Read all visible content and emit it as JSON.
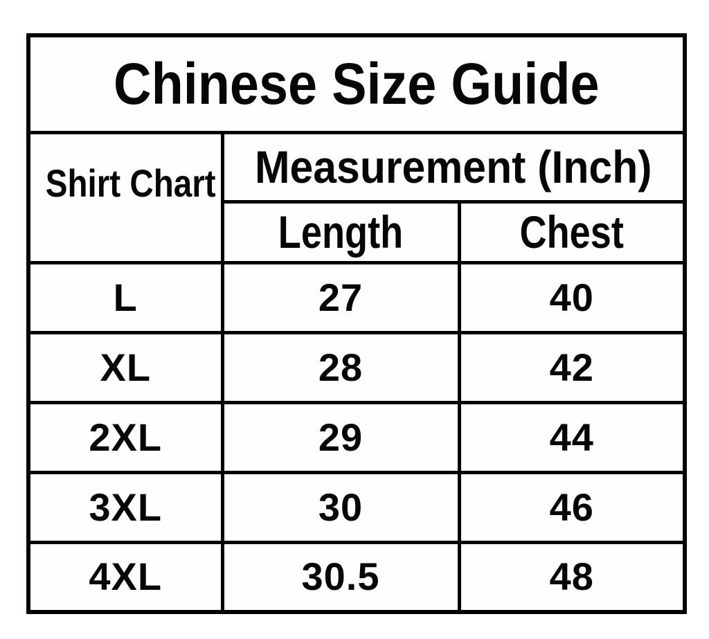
{
  "title": "Chinese Size Guide",
  "header": {
    "row_label": "Shirt Chart",
    "group_label": "Measurement (Inch)",
    "columns": [
      "Length",
      "Chest"
    ]
  },
  "rows": [
    {
      "size": "L",
      "length": "27",
      "chest": "40"
    },
    {
      "size": "XL",
      "length": "28",
      "chest": "42"
    },
    {
      "size": "2XL",
      "length": "29",
      "chest": "44"
    },
    {
      "size": "3XL",
      "length": "30",
      "chest": "46"
    },
    {
      "size": "4XL",
      "length": "30.5",
      "chest": "48"
    }
  ],
  "colors": {
    "background": "#ffffff",
    "border": "#020202",
    "text": "#060606"
  },
  "chart_data": {
    "type": "table",
    "title": "Chinese Size Guide",
    "units": "Inch",
    "columns": [
      "Shirt Chart",
      "Length",
      "Chest"
    ],
    "column_group": {
      "label": "Measurement (Inch)",
      "spans": [
        "Length",
        "Chest"
      ]
    },
    "rows": [
      [
        "L",
        27,
        40
      ],
      [
        "XL",
        28,
        42
      ],
      [
        "2XL",
        29,
        44
      ],
      [
        "3XL",
        30,
        46
      ],
      [
        "4XL",
        30.5,
        48
      ]
    ]
  }
}
